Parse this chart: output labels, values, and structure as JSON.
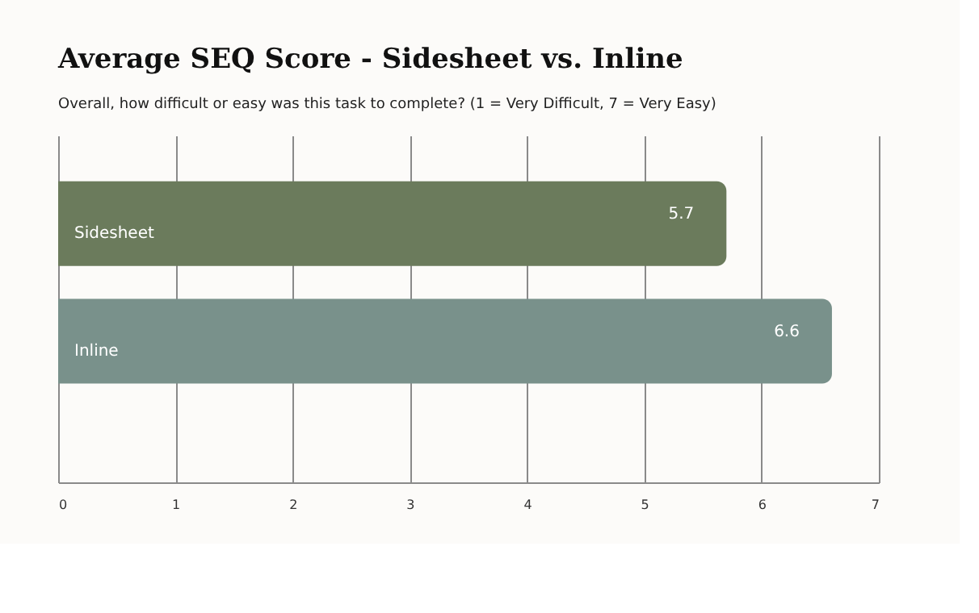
{
  "chart_data": {
    "type": "bar",
    "orientation": "horizontal",
    "title": "Average SEQ Score - Sidesheet vs. Inline",
    "subtitle": "Overall, how difficult or easy was this task to complete? (1 = Very Difficult, 7 = Very Easy)",
    "categories": [
      "Sidesheet",
      "Inline"
    ],
    "values": [
      5.7,
      6.6
    ],
    "colors": [
      "#6b7b5c",
      "#79918b"
    ],
    "xlim": [
      0,
      7
    ],
    "xticks": [
      0,
      1,
      2,
      3,
      4,
      5,
      6,
      7
    ],
    "grid": "x",
    "data_labels": true,
    "tick_labels": "x"
  }
}
